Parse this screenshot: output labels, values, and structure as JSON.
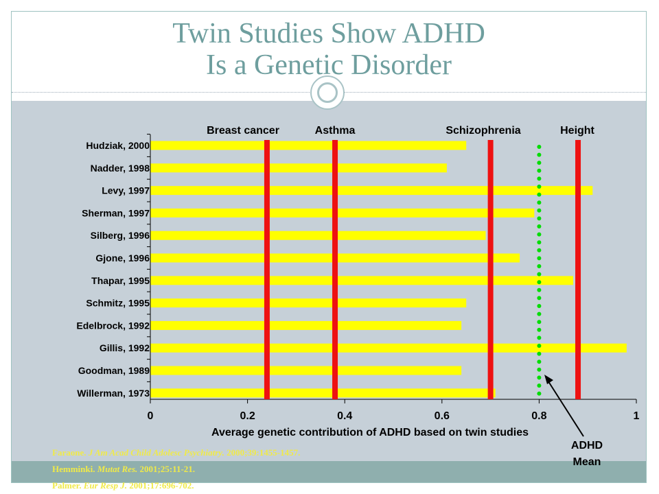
{
  "slide": {
    "title_line1": "Twin Studies Show ADHD",
    "title_line2": "Is a Genetic Disorder",
    "references": [
      {
        "authors": "Faraone.",
        "journal": "J Am Acad Child Adolesc Psychiatry.",
        "details": "2000;39:1455-1457."
      },
      {
        "authors": "Hemminki.",
        "journal": "Mutat Res.",
        "details": "2001;25:11-21."
      },
      {
        "authors": "Palmer.",
        "journal": "Eur Resp J.",
        "details": "2001;17:696-702."
      }
    ]
  },
  "colors": {
    "title": "#6e9e9e",
    "bar": "#ffff00",
    "reference_line": "#ee1111",
    "adhd_mean": "#00dd00",
    "reference_text": "#f0ea48"
  },
  "chart_data": {
    "type": "bar",
    "orientation": "horizontal",
    "categories": [
      "Hudziak, 2000",
      "Nadder, 1998",
      "Levy, 1997",
      "Sherman, 1997",
      "Silberg, 1996",
      "Gjone, 1996",
      "Thapar, 1995",
      "Schmitz, 1995",
      "Edelbrock, 1992",
      "Gillis, 1992",
      "Goodman, 1989",
      "Willerman, 1973"
    ],
    "values": [
      0.65,
      0.61,
      0.91,
      0.79,
      0.69,
      0.76,
      0.87,
      0.65,
      0.64,
      0.98,
      0.64,
      0.71
    ],
    "xlabel": "Average genetic contribution of ADHD based on twin studies",
    "xlim": [
      0,
      1
    ],
    "xticks": [
      "0",
      "0.2",
      "0.4",
      "0.6",
      "0.8",
      "1"
    ],
    "reference_lines": [
      {
        "label": "Breast cancer",
        "value": 0.24
      },
      {
        "label": "Asthma",
        "value": 0.38
      },
      {
        "label": "Schizophrenia",
        "value": 0.7
      },
      {
        "label": "Height",
        "value": 0.88
      }
    ],
    "mean_line": {
      "value": 0.8,
      "label_line1": "ADHD",
      "label_line2": "Mean"
    },
    "grid": false
  }
}
